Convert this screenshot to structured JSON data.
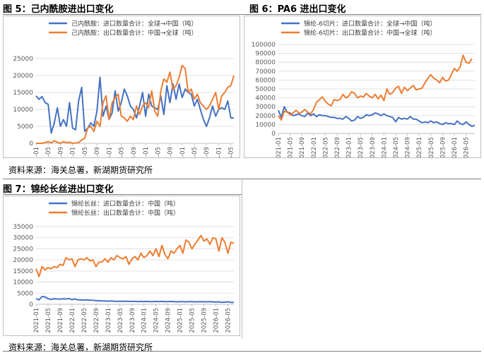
{
  "figures": [
    {
      "title": "图 5：己内酰胺进出口变化",
      "chart_data": {
        "type": "line",
        "x_ticks": [
          "2021-01",
          "2021-05",
          "2021-09",
          "2022-01",
          "2022-05",
          "2022-09",
          "2023-01",
          "2023-05",
          "2023-09",
          "2024-01",
          "2024-05",
          "2024-09",
          "2025-01",
          "2025-05",
          "2025-09",
          "2026-01",
          "2026-05"
        ],
        "ylim": [
          0,
          25000
        ],
        "y_ticks": [
          0,
          5000,
          10000,
          15000,
          20000,
          25000
        ],
        "legend_position": "top",
        "grid": "horizontal",
        "series": [
          {
            "name": "己内酰胺：进口数量合计：全球→中国（吨）",
            "color": "#4472c4",
            "values": [
              14000,
              13000,
              13800,
              12000,
              11500,
              3000,
              6000,
              10500,
              5000,
              7000,
              5000,
              12000,
              4500,
              4000,
              12500,
              16500,
              3500,
              4500,
              6000,
              5000,
              9500,
              19500,
              8000,
              11000,
              7000,
              9000,
              15500,
              9500,
              12000,
              16000,
              14000,
              11000,
              10000,
              7500,
              11000,
              15000,
              8000,
              14500,
              11000,
              10500,
              10000,
              14000,
              8500,
              17000,
              12000,
              17500,
              13000,
              17500,
              13500,
              16000,
              15000,
              14500,
              11000,
              13000,
              10000,
              7000,
              5000,
              7500,
              11000,
              8000,
              10000,
              10500,
              10000,
              12500,
              7500,
              7500
            ]
          },
          {
            "name": "己内酰胺：出口数量合计：中国→全球（吨）",
            "color": "#ed7d31",
            "values": [
              0,
              0,
              0,
              200,
              500,
              100,
              800,
              300,
              0,
              500,
              200,
              300,
              0,
              100,
              200,
              1000,
              1500,
              4500,
              5000,
              3500,
              6500,
              5000,
              12000,
              14000,
              7000,
              12000,
              13500,
              14500,
              8000,
              7500,
              6500,
              8000,
              7000,
              11000,
              8500,
              11000,
              12000,
              10500,
              15500,
              9500,
              8000,
              15500,
              19000,
              18000,
              21000,
              16000,
              17000,
              19500,
              23000,
              22000,
              15000,
              16000,
              13000,
              14500,
              12000,
              11000,
              10000,
              11000,
              13000,
              15000,
              10000,
              14000,
              15000,
              16500,
              17000,
              20000
            ]
          }
        ]
      }
    },
    {
      "title": "图 6：PA6 进出口变化",
      "chart_data": {
        "type": "line",
        "x_ticks": [
          "2021-01",
          "2021-05",
          "2021-09",
          "2022-01",
          "2022-05",
          "2022-09",
          "2023-01",
          "2023-05",
          "2023-09",
          "2024-01",
          "2024-05",
          "2024-09",
          "2025-01",
          "2025-05",
          "2025-09",
          "2026-01",
          "2026-05"
        ],
        "ylim": [
          0,
          100000
        ],
        "y_ticks": [
          0,
          10000,
          20000,
          30000,
          40000,
          50000,
          60000,
          70000,
          80000,
          90000,
          100000
        ],
        "legend_position": "top",
        "grid": "horizontal",
        "series": [
          {
            "name": "锦纶-6切片：进口数量合计：全球→中国（吨）",
            "color": "#4472c4",
            "values": [
              26000,
              18000,
              30000,
              24000,
              23000,
              20000,
              21000,
              22000,
              20000,
              19000,
              23000,
              20000,
              22000,
              19000,
              21000,
              20000,
              20000,
              19000,
              18000,
              18000,
              17000,
              17000,
              16000,
              19000,
              17000,
              14000,
              15000,
              19000,
              17000,
              18000,
              21000,
              20000,
              21000,
              23000,
              22000,
              20000,
              22000,
              20000,
              19000,
              18000,
              13000,
              18000,
              16000,
              17000,
              16000,
              19000,
              16000,
              16000,
              14000,
              12000,
              13000,
              12000,
              14000,
              12000,
              13000,
              11000,
              10000,
              12000,
              11000,
              11000,
              10000,
              14000,
              11000,
              10000,
              13000,
              10000,
              8000,
              9000
            ]
          },
          {
            "name": "锦纶-6切片：出口数量合计：中国→全球（吨）",
            "color": "#ed7d31",
            "values": [
              20000,
              15000,
              25000,
              24000,
              21000,
              23000,
              26000,
              23000,
              24000,
              27000,
              24000,
              22000,
              27000,
              35000,
              38000,
              41000,
              36000,
              33000,
              31000,
              38000,
              37000,
              38000,
              44000,
              40000,
              42000,
              47000,
              45000,
              40000,
              42000,
              41000,
              45000,
              42000,
              40000,
              44000,
              39000,
              43000,
              37000,
              50000,
              44000,
              46000,
              51000,
              53000,
              45000,
              52000,
              48000,
              51000,
              54000,
              49000,
              50000,
              51000,
              57000,
              62000,
              66000,
              62000,
              60000,
              57000,
              63000,
              59000,
              60000,
              66000,
              73000,
              70000,
              75000,
              88000,
              80000,
              79000,
              84000
            ]
          }
        ]
      }
    },
    {
      "title": "图 7：锦纶长丝进出口变化",
      "chart_data": {
        "type": "line",
        "x_ticks": [
          "2021-01",
          "2021-05",
          "2021-09",
          "2022-01",
          "2022-05",
          "2022-09",
          "2023-01",
          "2023-05",
          "2023-09",
          "2024-01",
          "2024-05",
          "2024-09",
          "2025-01",
          "2025-05",
          "2025-09",
          "2026-01",
          "2026-05"
        ],
        "ylim": [
          0,
          35000
        ],
        "y_ticks": [
          0,
          5000,
          10000,
          15000,
          20000,
          25000,
          30000,
          35000
        ],
        "legend_position": "top",
        "grid": "horizontal",
        "series": [
          {
            "name": "锦纶长丝：进口数量合计：中国（吨）",
            "color": "#4472c4",
            "values": [
              2500,
              2000,
              3500,
              3300,
              2500,
              2200,
              2500,
              2400,
              2300,
              2500,
              2400,
              2600,
              2100,
              2400,
              2000,
              2000,
              1900,
              2000,
              1800,
              1800,
              1600,
              1700,
              1500,
              1500,
              1400,
              1500,
              1400,
              1300,
              1400,
              1300,
              1400,
              1300,
              1300,
              1300,
              1200,
              1300,
              1200,
              1300,
              1200,
              1200,
              1300,
              1200,
              1300,
              1200,
              1200,
              1300,
              1200,
              1100,
              1200,
              1200,
              1100,
              1200,
              1200,
              1100,
              1100,
              1200,
              1100,
              1100,
              1200,
              1100,
              1000,
              1100,
              900,
              1000,
              1100,
              900,
              800
            ]
          },
          {
            "name": "锦纶长丝：出口数量合计：中国（吨）",
            "color": "#ed7d31",
            "values": [
              16000,
              12500,
              17000,
              15500,
              16500,
              16000,
              17000,
              16500,
              18000,
              17500,
              21000,
              20000,
              20500,
              17000,
              20000,
              20500,
              20000,
              21000,
              19500,
              20000,
              17000,
              19000,
              19000,
              20500,
              19000,
              21000,
              20000,
              22000,
              21000,
              20500,
              21500,
              18000,
              20500,
              21500,
              20000,
              23000,
              21000,
              22000,
              24000,
              22000,
              25000,
              21500,
              26500,
              22500,
              20500,
              24000,
              23000,
              25000,
              26500,
              23000,
              29000,
              28000,
              25000,
              27000,
              29000,
              31000,
              28500,
              29500,
              27000,
              30000,
              29500,
              24000,
              30000,
              28000,
              23000,
              28000,
              27500
            ]
          }
        ]
      }
    }
  ],
  "sources": [
    "资料来源：海关总署，新湖期货研究所",
    "资料来源：海关总署，新湖期货研究所"
  ]
}
